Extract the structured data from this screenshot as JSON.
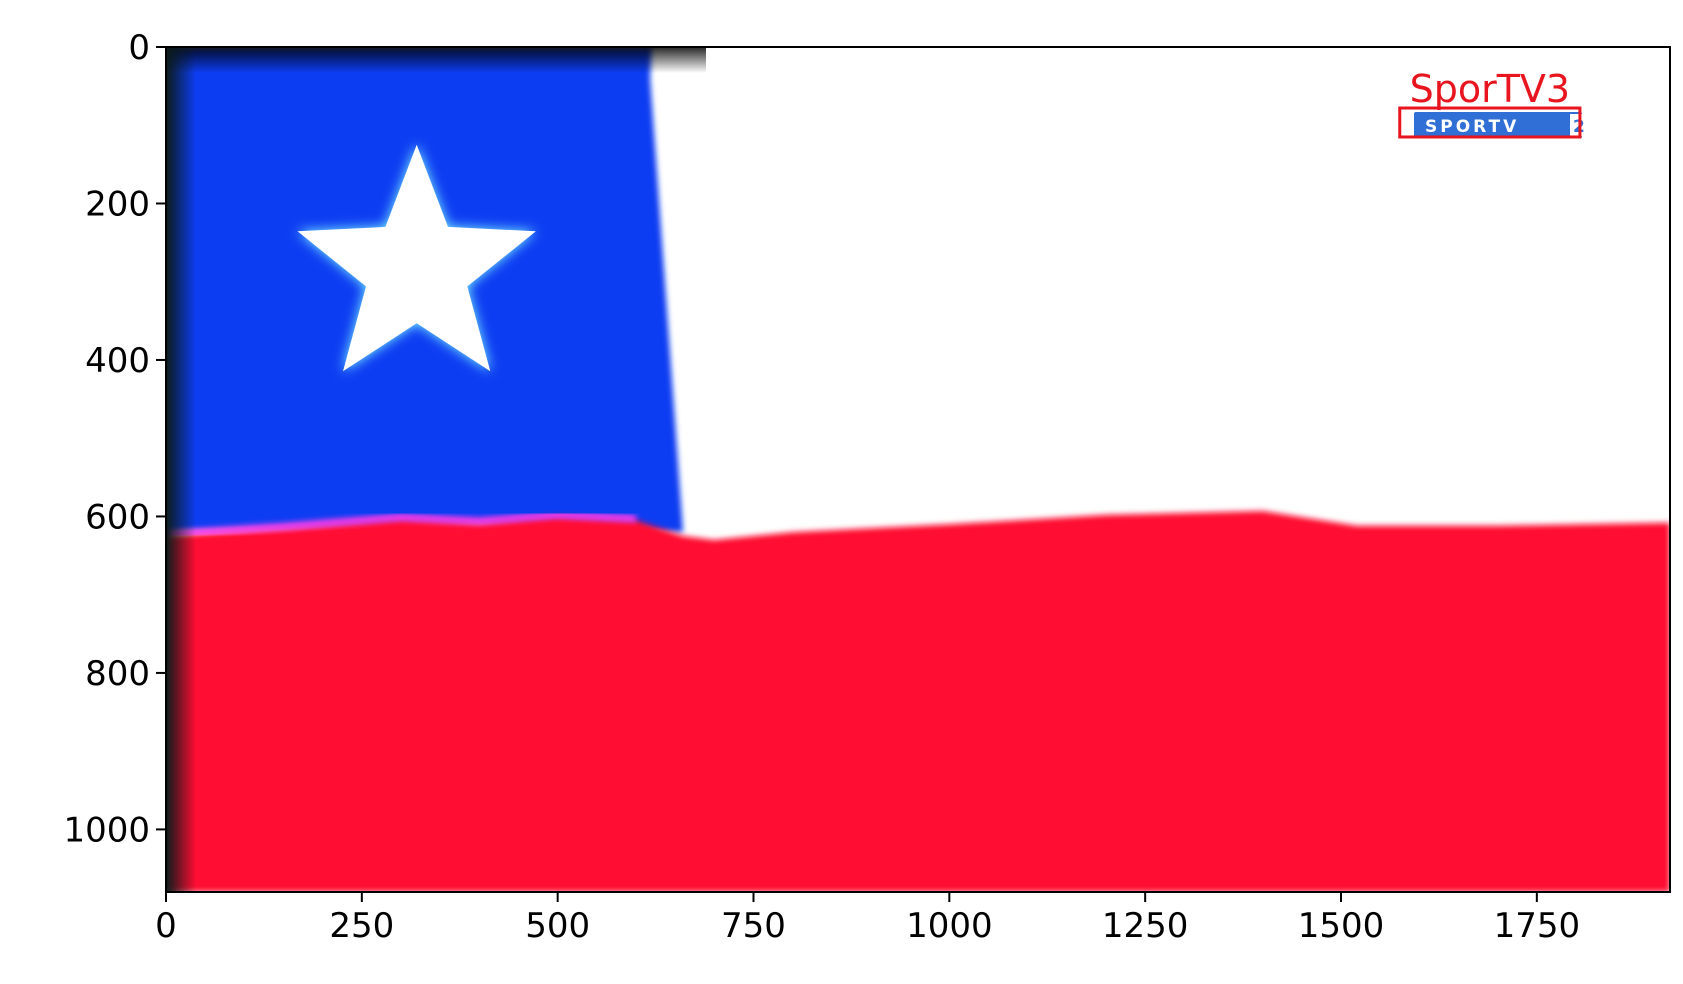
{
  "image": {
    "width": 1920,
    "height": 1080
  },
  "axes": {
    "x_ticks": [
      0,
      250,
      500,
      750,
      1000,
      1250,
      1500,
      1750
    ],
    "y_ticks": [
      0,
      200,
      400,
      600,
      800,
      1000
    ]
  },
  "scene": {
    "subject": "Chilean flag",
    "colors": {
      "blue": "#0a3cf2",
      "white": "#ffffff",
      "red": "#ff0a32",
      "dark_edge": "#0b1a1a"
    }
  },
  "logo": {
    "text": "SPORTV",
    "suffix": "2",
    "colors": {
      "bg": "#2f6fd6",
      "text": "#ffffff"
    }
  },
  "annotation": {
    "label": "SporTV3",
    "color": "#e8141e",
    "box": {
      "x1": 1575,
      "y1": 78,
      "x2": 1805,
      "y2": 115
    }
  }
}
